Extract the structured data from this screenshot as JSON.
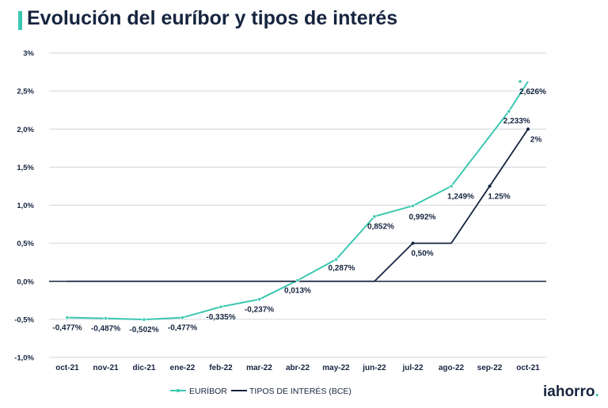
{
  "title": "Evolución del euríbor y tipos de interés",
  "logo": {
    "text": "iahorro",
    "dot": "."
  },
  "colors": {
    "euribor": "#3cc7b0",
    "bce": "#16243f",
    "grid": "#cfd6dd",
    "zero": "#16243f",
    "text": "#16243f"
  },
  "chart_data": {
    "type": "line",
    "categories": [
      "oct-21",
      "nov-21",
      "dic-21",
      "ene-22",
      "feb-22",
      "mar-22",
      "abr-22",
      "may-22",
      "jun-22",
      "jul-22",
      "ago-22",
      "sep-22",
      "oct-21"
    ],
    "y_ticks": [
      "3%",
      "2,5%",
      "2,0%",
      "1,5%",
      "1,0%",
      "0,5%",
      "0,0%",
      "-0,5%",
      "-1,0%"
    ],
    "y_tick_values": [
      3,
      2.5,
      2,
      1.5,
      1,
      0.5,
      0,
      -0.5,
      -1
    ],
    "ylim": [
      -1,
      3
    ],
    "grid": true,
    "legend_position": "bottom-left",
    "series": [
      {
        "name": "EURÍBOR",
        "color": "#3cc7b0",
        "x": [
          0,
          1,
          2,
          3,
          4,
          5,
          6,
          7,
          8,
          9,
          10,
          11.5
        ],
        "values": [
          -0.477,
          -0.487,
          -0.502,
          -0.477,
          -0.335,
          -0.237,
          0.013,
          0.287,
          0.852,
          0.992,
          1.249,
          2.233
        ],
        "markers": [
          0,
          1,
          2,
          3,
          4,
          5,
          6,
          7,
          8,
          9,
          10,
          11.5
        ],
        "labels": [
          "-0,477%",
          "-0,487%",
          "-0,502%",
          "-0,477%",
          "-0,335%",
          "-0,237%",
          "0,013%",
          "0,287%",
          "0,852%",
          "0,992%",
          "1,249%",
          "2,233%"
        ],
        "extra_points": [
          {
            "x": 12,
            "value": 2.626,
            "label": "2,626%"
          }
        ]
      },
      {
        "name": "TIPOS DE INTERÉS (BCE)",
        "color": "#16243f",
        "x": [
          0,
          1,
          2,
          3,
          4,
          5,
          6,
          7,
          8,
          9,
          10,
          11,
          12
        ],
        "values": [
          0,
          0,
          0,
          0,
          0,
          0,
          0,
          0,
          0,
          0.5,
          0.5,
          1.25,
          2
        ],
        "labels": [
          null,
          null,
          null,
          null,
          null,
          null,
          null,
          null,
          null,
          "0,50%",
          null,
          "1.25%",
          "2%"
        ]
      }
    ]
  }
}
